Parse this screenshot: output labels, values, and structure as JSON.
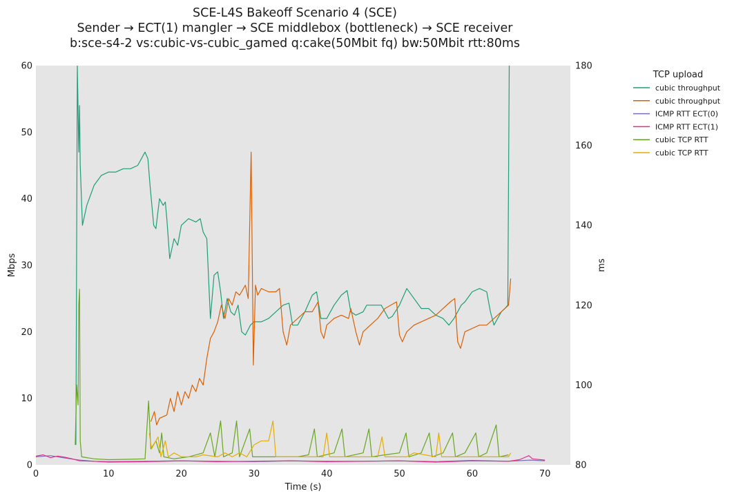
{
  "chart_data": {
    "type": "line",
    "title": [
      "SCE-L4S Bakeoff Scenario 4 (SCE)",
      "Sender → ECT(1) mangler → SCE middlebox (bottleneck) → SCE receiver",
      "b:sce-s4-2 vs:cubic-vs-cubic_gamed q:cake(50Mbit fq) bw:50Mbit rtt:80ms"
    ],
    "xlabel": "Time (s)",
    "ylabel": "Mbps",
    "y2label": "ms",
    "xlim": [
      0,
      73.5
    ],
    "ylim": [
      0,
      60
    ],
    "y2lim": [
      80,
      180
    ],
    "xticks": [
      0,
      10,
      20,
      30,
      40,
      50,
      60,
      70
    ],
    "yticks": [
      0,
      10,
      20,
      30,
      40,
      50,
      60
    ],
    "y2ticks": [
      80,
      100,
      120,
      140,
      160,
      180
    ],
    "grid": false,
    "legend_title": "TCP upload",
    "legend_position": "outside-right",
    "series": [
      {
        "name": "cubic throughput",
        "axis": "left",
        "color": "#1b9e77",
        "points": [
          [
            5.5,
            3
          ],
          [
            5.7,
            60
          ],
          [
            5.9,
            47
          ],
          [
            6.0,
            54
          ],
          [
            6.1,
            45
          ],
          [
            6.4,
            36
          ],
          [
            7,
            39
          ],
          [
            8,
            42
          ],
          [
            9,
            43.5
          ],
          [
            10,
            44
          ],
          [
            11,
            44
          ],
          [
            12,
            44.5
          ],
          [
            13,
            44.5
          ],
          [
            14,
            45
          ],
          [
            14.5,
            46
          ],
          [
            15,
            47
          ],
          [
            15.4,
            46
          ],
          [
            15.7,
            42
          ],
          [
            16.2,
            36
          ],
          [
            16.5,
            35.5
          ],
          [
            17,
            40
          ],
          [
            17.5,
            39
          ],
          [
            17.8,
            39.5
          ],
          [
            18,
            37
          ],
          [
            18.4,
            31
          ],
          [
            19,
            34
          ],
          [
            19.5,
            33
          ],
          [
            20,
            36
          ],
          [
            21,
            37
          ],
          [
            22,
            36.5
          ],
          [
            22.6,
            37
          ],
          [
            23,
            35
          ],
          [
            23.5,
            34
          ],
          [
            24,
            22
          ],
          [
            24.5,
            28.5
          ],
          [
            25,
            29
          ],
          [
            25.4,
            26
          ],
          [
            25.8,
            22
          ],
          [
            26.3,
            25
          ],
          [
            26.8,
            23
          ],
          [
            27.3,
            22.5
          ],
          [
            27.8,
            24
          ],
          [
            28.3,
            20
          ],
          [
            28.8,
            19.5
          ],
          [
            29.5,
            21
          ],
          [
            30,
            21.5
          ],
          [
            31,
            21.5
          ],
          [
            32,
            22
          ],
          [
            33,
            23
          ],
          [
            34,
            24
          ],
          [
            34.8,
            24.3
          ],
          [
            35.3,
            21
          ],
          [
            36,
            21
          ],
          [
            37,
            23
          ],
          [
            38,
            25.5
          ],
          [
            38.6,
            26
          ],
          [
            39.2,
            22
          ],
          [
            40,
            22
          ],
          [
            41,
            24
          ],
          [
            42,
            25.5
          ],
          [
            42.8,
            26.2
          ],
          [
            43.3,
            23
          ],
          [
            44,
            22.5
          ],
          [
            45,
            23
          ],
          [
            45.5,
            24
          ],
          [
            46.5,
            24
          ],
          [
            47.5,
            24
          ],
          [
            48.5,
            22
          ],
          [
            49,
            22.3
          ],
          [
            50,
            24
          ],
          [
            51,
            26.5
          ],
          [
            52,
            25
          ],
          [
            53,
            23.5
          ],
          [
            54,
            23.5
          ],
          [
            55,
            22.5
          ],
          [
            56,
            22
          ],
          [
            56.8,
            21
          ],
          [
            57.5,
            22
          ],
          [
            58.5,
            24
          ],
          [
            59,
            24.5
          ],
          [
            60,
            26
          ],
          [
            61,
            26.5
          ],
          [
            62,
            26
          ],
          [
            62.5,
            23
          ],
          [
            63,
            21
          ],
          [
            63.5,
            22
          ],
          [
            64,
            23
          ],
          [
            64.5,
            23.5
          ],
          [
            64.9,
            24
          ],
          [
            65.1,
            60
          ]
        ]
      },
      {
        "name": "cubic throughput",
        "axis": "left",
        "color": "#d95f02",
        "points": [
          [
            15.8,
            6.5
          ],
          [
            16.3,
            8
          ],
          [
            16.6,
            6
          ],
          [
            17,
            7
          ],
          [
            18,
            7.5
          ],
          [
            18.5,
            10
          ],
          [
            19,
            8
          ],
          [
            19.5,
            11
          ],
          [
            20,
            9
          ],
          [
            20.5,
            11
          ],
          [
            21,
            10
          ],
          [
            21.5,
            12
          ],
          [
            22,
            11
          ],
          [
            22.5,
            13
          ],
          [
            23,
            12
          ],
          [
            23.5,
            16
          ],
          [
            24,
            19
          ],
          [
            24.5,
            20
          ],
          [
            25,
            21.5
          ],
          [
            25.5,
            24
          ],
          [
            26,
            22
          ],
          [
            26.5,
            25
          ],
          [
            27,
            24
          ],
          [
            27.5,
            26
          ],
          [
            28,
            25.5
          ],
          [
            28.8,
            27
          ],
          [
            29.2,
            25
          ],
          [
            29.6,
            47
          ],
          [
            29.9,
            15
          ],
          [
            30.2,
            27
          ],
          [
            30.5,
            25.5
          ],
          [
            31,
            26.5
          ],
          [
            32,
            26
          ],
          [
            33,
            26
          ],
          [
            33.5,
            26.5
          ],
          [
            34,
            20
          ],
          [
            34.5,
            18
          ],
          [
            35,
            21
          ],
          [
            36,
            22
          ],
          [
            37,
            23
          ],
          [
            38,
            23
          ],
          [
            38.8,
            24.5
          ],
          [
            39.2,
            20
          ],
          [
            39.6,
            19
          ],
          [
            40,
            21
          ],
          [
            41,
            22
          ],
          [
            42,
            22.5
          ],
          [
            43,
            22
          ],
          [
            43.3,
            23.5
          ],
          [
            44,
            20
          ],
          [
            44.5,
            18
          ],
          [
            45,
            20
          ],
          [
            46,
            21
          ],
          [
            47,
            22
          ],
          [
            48,
            23.5
          ],
          [
            49.6,
            24.5
          ],
          [
            50,
            19.5
          ],
          [
            50.4,
            18.5
          ],
          [
            51,
            20
          ],
          [
            52,
            21
          ],
          [
            53,
            21.5
          ],
          [
            54,
            22
          ],
          [
            55,
            22.5
          ],
          [
            56,
            23.5
          ],
          [
            57,
            24.5
          ],
          [
            57.6,
            25
          ],
          [
            58,
            18.5
          ],
          [
            58.4,
            17.5
          ],
          [
            59,
            20
          ],
          [
            60,
            20.5
          ],
          [
            61,
            21
          ],
          [
            62,
            21
          ],
          [
            63,
            22
          ],
          [
            64,
            23
          ],
          [
            65,
            24
          ],
          [
            65.3,
            28
          ]
        ]
      },
      {
        "name": "ICMP RTT ECT(0)",
        "axis": "right",
        "color": "#7570b3",
        "points": [
          [
            0,
            82
          ],
          [
            2,
            82.3
          ],
          [
            4,
            81.7
          ],
          [
            6,
            81.2
          ],
          [
            8,
            80.9
          ],
          [
            10,
            80.8
          ],
          [
            15,
            80.9
          ],
          [
            20,
            81
          ],
          [
            25,
            80.9
          ],
          [
            30,
            80.8
          ],
          [
            35,
            81
          ],
          [
            40,
            80.9
          ],
          [
            45,
            80.9
          ],
          [
            50,
            81
          ],
          [
            55,
            80.8
          ],
          [
            60,
            81.1
          ],
          [
            65,
            80.9
          ],
          [
            68,
            81.2
          ],
          [
            70,
            81
          ]
        ]
      },
      {
        "name": "ICMP RTT ECT(1)",
        "axis": "right",
        "color": "#e7298a",
        "points": [
          [
            0,
            82.2
          ],
          [
            1,
            82.5
          ],
          [
            2,
            81.8
          ],
          [
            3,
            82.2
          ],
          [
            4,
            81.9
          ],
          [
            5,
            81.5
          ],
          [
            6,
            81
          ],
          [
            8,
            80.9
          ],
          [
            10,
            80.7
          ],
          [
            15,
            80.8
          ],
          [
            20,
            81
          ],
          [
            25,
            80.8
          ],
          [
            30,
            80.9
          ],
          [
            35,
            81
          ],
          [
            40,
            80.8
          ],
          [
            45,
            80.9
          ],
          [
            50,
            81
          ],
          [
            55,
            80.7
          ],
          [
            60,
            81
          ],
          [
            65,
            80.9
          ],
          [
            66.5,
            81.3
          ],
          [
            67.8,
            82.3
          ],
          [
            68.3,
            81.5
          ],
          [
            70,
            81.2
          ]
        ]
      },
      {
        "name": "cubic TCP RTT",
        "axis": "right",
        "color": "#66a61e",
        "points": [
          [
            5.4,
            85
          ],
          [
            5.6,
            100
          ],
          [
            5.8,
            95
          ],
          [
            5.9,
            120
          ],
          [
            6.0,
            124
          ],
          [
            6.1,
            86
          ],
          [
            6.3,
            82
          ],
          [
            8,
            81.5
          ],
          [
            10,
            81.3
          ],
          [
            13,
            81.4
          ],
          [
            15,
            81.5
          ],
          [
            15.5,
            96
          ],
          [
            15.8,
            84
          ],
          [
            16.5,
            86
          ],
          [
            17,
            83
          ],
          [
            17.3,
            88
          ],
          [
            17.6,
            82
          ],
          [
            19,
            81.5
          ],
          [
            21,
            82
          ],
          [
            23,
            83
          ],
          [
            24,
            88
          ],
          [
            24.6,
            82
          ],
          [
            25.4,
            91
          ],
          [
            25.8,
            82
          ],
          [
            27,
            83
          ],
          [
            27.6,
            91
          ],
          [
            28,
            82
          ],
          [
            29.4,
            89
          ],
          [
            29.8,
            82
          ],
          [
            33,
            82
          ],
          [
            36,
            82
          ],
          [
            37.5,
            82.5
          ],
          [
            38.3,
            89
          ],
          [
            38.7,
            82
          ],
          [
            41,
            83
          ],
          [
            42.1,
            89
          ],
          [
            42.5,
            82
          ],
          [
            45,
            83
          ],
          [
            45.8,
            89
          ],
          [
            46.2,
            82
          ],
          [
            48,
            82.5
          ],
          [
            50,
            83
          ],
          [
            50.9,
            88
          ],
          [
            51.3,
            82
          ],
          [
            53,
            83
          ],
          [
            54.1,
            88
          ],
          [
            54.5,
            82
          ],
          [
            56,
            83
          ],
          [
            57.3,
            88
          ],
          [
            57.7,
            82
          ],
          [
            59,
            83
          ],
          [
            60.5,
            88
          ],
          [
            60.9,
            82
          ],
          [
            62,
            83
          ],
          [
            63.3,
            90
          ],
          [
            63.7,
            82
          ],
          [
            65,
            82.5
          ]
        ]
      },
      {
        "name": "cubic TCP RTT",
        "axis": "right",
        "color": "#e6ab02",
        "points": [
          [
            15.6,
            88
          ],
          [
            15.9,
            84
          ],
          [
            16.8,
            87
          ],
          [
            17.2,
            82
          ],
          [
            17.8,
            86
          ],
          [
            18.2,
            82
          ],
          [
            19,
            83
          ],
          [
            20,
            82
          ],
          [
            22,
            82
          ],
          [
            23,
            82.5
          ],
          [
            25,
            82
          ],
          [
            26,
            83
          ],
          [
            27,
            82
          ],
          [
            28,
            83
          ],
          [
            29,
            82
          ],
          [
            30,
            85
          ],
          [
            31,
            86
          ],
          [
            32,
            86
          ],
          [
            32.6,
            91
          ],
          [
            33,
            82
          ],
          [
            36,
            82
          ],
          [
            37,
            82
          ],
          [
            38,
            82
          ],
          [
            39.5,
            82
          ],
          [
            40,
            88
          ],
          [
            40.4,
            82
          ],
          [
            44,
            82
          ],
          [
            47,
            82
          ],
          [
            47.6,
            87
          ],
          [
            48,
            82
          ],
          [
            51,
            82
          ],
          [
            52,
            83
          ],
          [
            55,
            82
          ],
          [
            55.4,
            88
          ],
          [
            55.8,
            82
          ],
          [
            59,
            82
          ],
          [
            62,
            82
          ],
          [
            65,
            82
          ],
          [
            65.3,
            83
          ]
        ]
      }
    ]
  }
}
